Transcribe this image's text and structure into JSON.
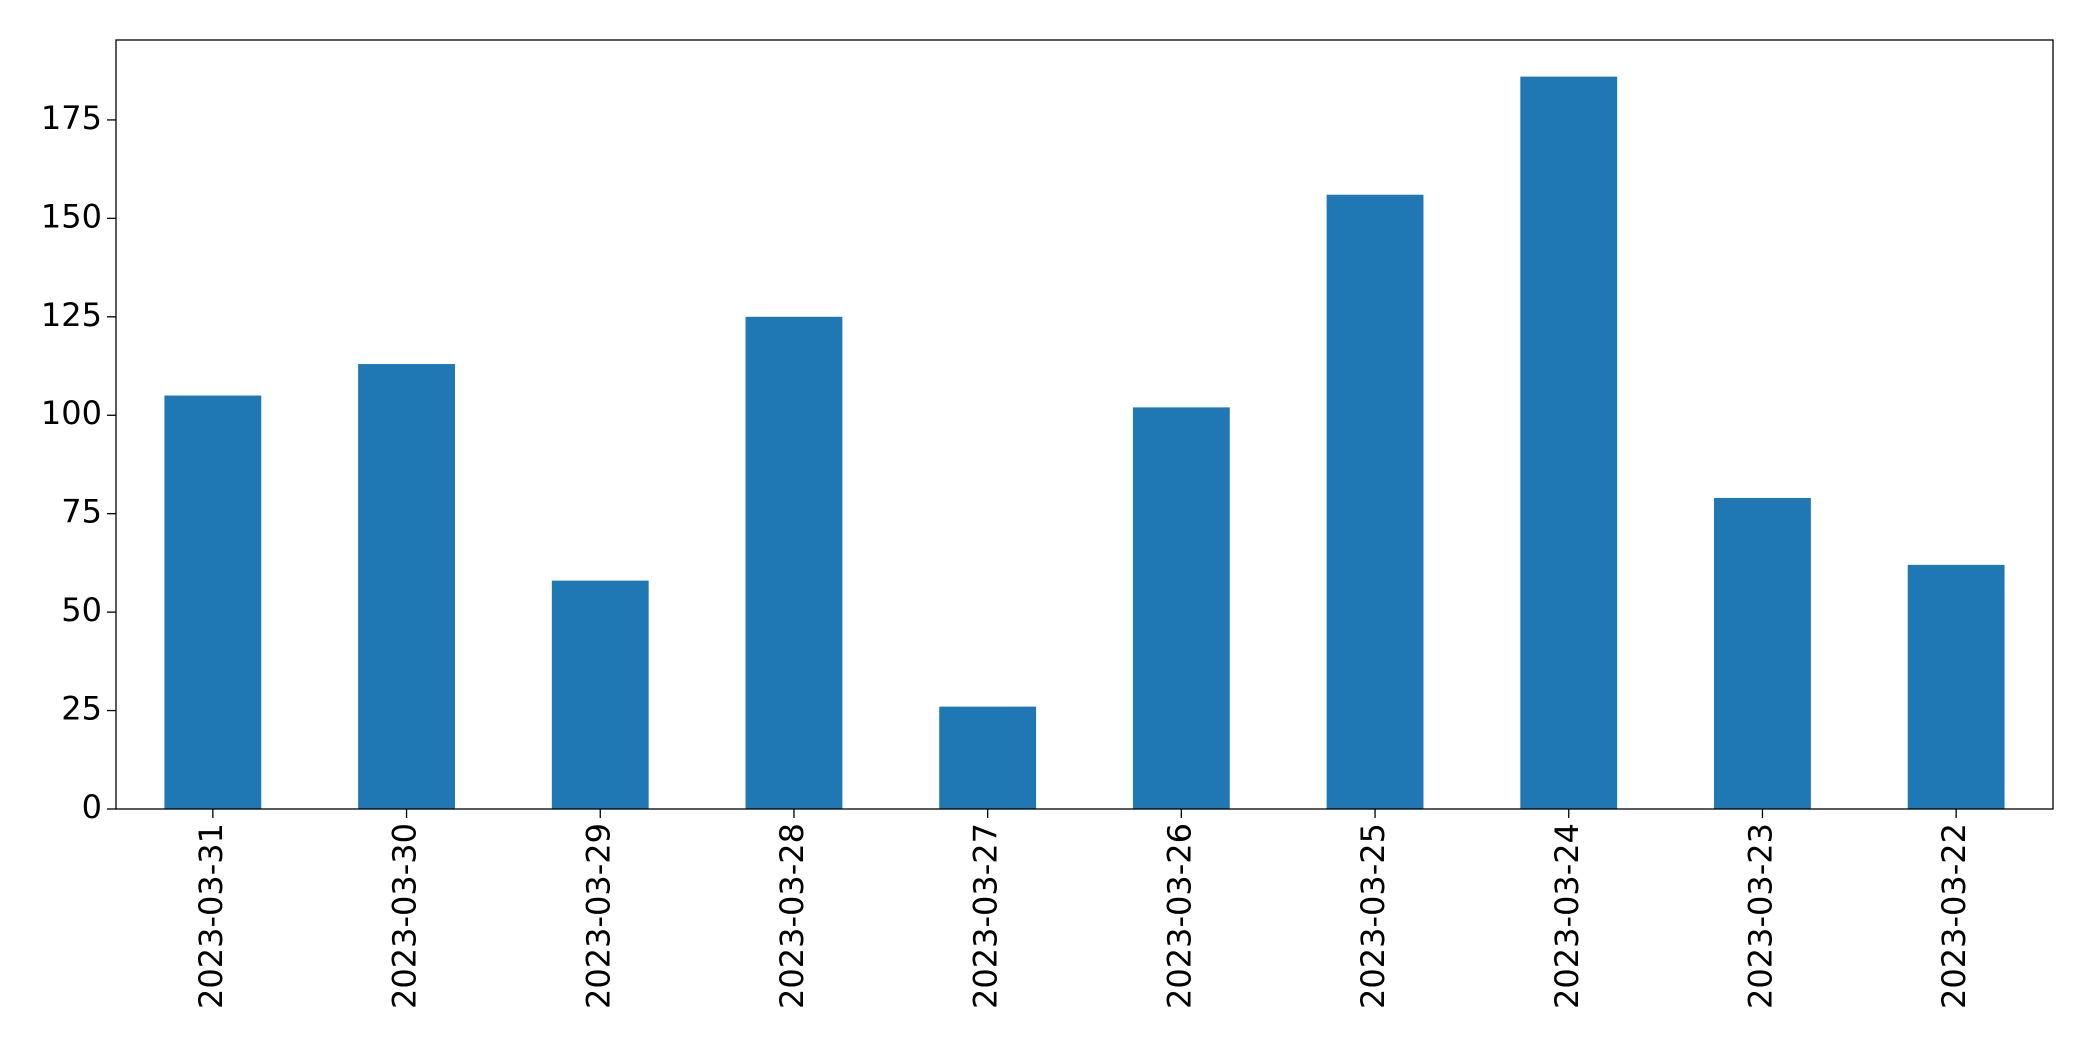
{
  "chart_data": {
    "type": "bar",
    "categories": [
      "2023-03-31",
      "2023-03-30",
      "2023-03-29",
      "2023-03-28",
      "2023-03-27",
      "2023-03-26",
      "2023-03-25",
      "2023-03-24",
      "2023-03-23",
      "2023-03-22"
    ],
    "values": [
      105,
      113,
      58,
      125,
      26,
      102,
      156,
      186,
      79,
      62
    ],
    "color": "#1f77b4",
    "ylim": [
      0,
      195.3
    ],
    "yticks": [
      0,
      25,
      50,
      75,
      100,
      125,
      150,
      175
    ],
    "grid": false
  }
}
